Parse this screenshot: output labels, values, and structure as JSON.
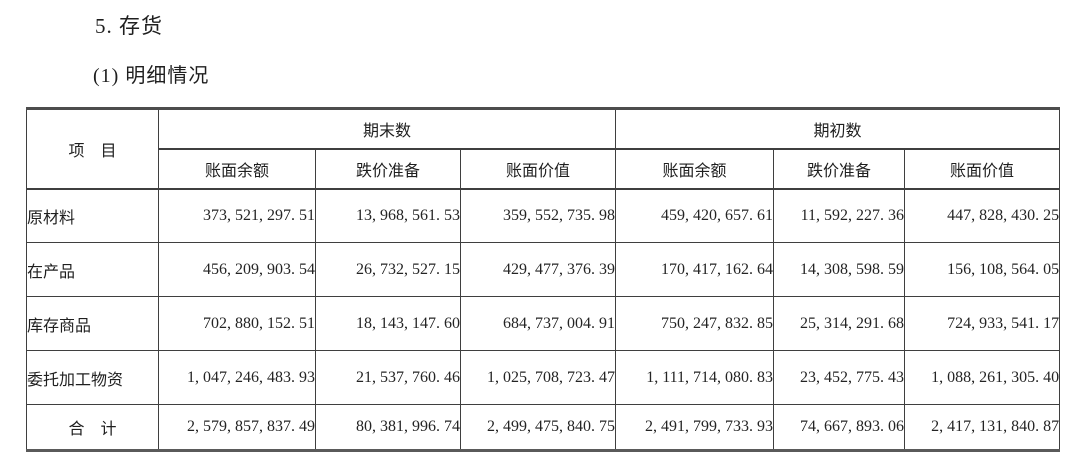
{
  "page": {
    "heading": "5. 存货",
    "subheading": "(1) 明细情况"
  },
  "table": {
    "item_header": "项　目",
    "group_headers": [
      "期末数",
      "期初数"
    ],
    "sub_headers": [
      "账面余额",
      "跌价准备",
      "账面价值",
      "账面余额",
      "跌价准备",
      "账面价值"
    ],
    "rows": [
      {
        "label": "原材料",
        "values": [
          "373, 521, 297. 51",
          "13, 968, 561. 53",
          "359, 552, 735. 98",
          "459, 420, 657. 61",
          "11, 592, 227. 36",
          "447, 828, 430. 25"
        ]
      },
      {
        "label": "在产品",
        "values": [
          "456, 209, 903. 54",
          "26, 732, 527. 15",
          "429, 477, 376. 39",
          "170, 417, 162. 64",
          "14, 308, 598. 59",
          "156, 108, 564. 05"
        ]
      },
      {
        "label": "库存商品",
        "values": [
          "702, 880, 152. 51",
          "18, 143, 147. 60",
          "684, 737, 004. 91",
          "750, 247, 832. 85",
          "25, 314, 291. 68",
          "724, 933, 541. 17"
        ]
      },
      {
        "label": "委托加工物资",
        "values": [
          "1, 047, 246, 483. 93",
          "21, 537, 760. 46",
          "1, 025, 708, 723. 47",
          "1, 111, 714, 080. 83",
          "23, 452, 775. 43",
          "1, 088, 261, 305. 40"
        ]
      },
      {
        "label": "合　计",
        "values": [
          "2, 579, 857, 837. 49",
          "80, 381, 996. 74",
          "2, 499, 475, 840. 75",
          "2, 491, 799, 733. 93",
          "74, 667, 893. 06",
          "2, 417, 131, 840. 87"
        ]
      }
    ]
  }
}
